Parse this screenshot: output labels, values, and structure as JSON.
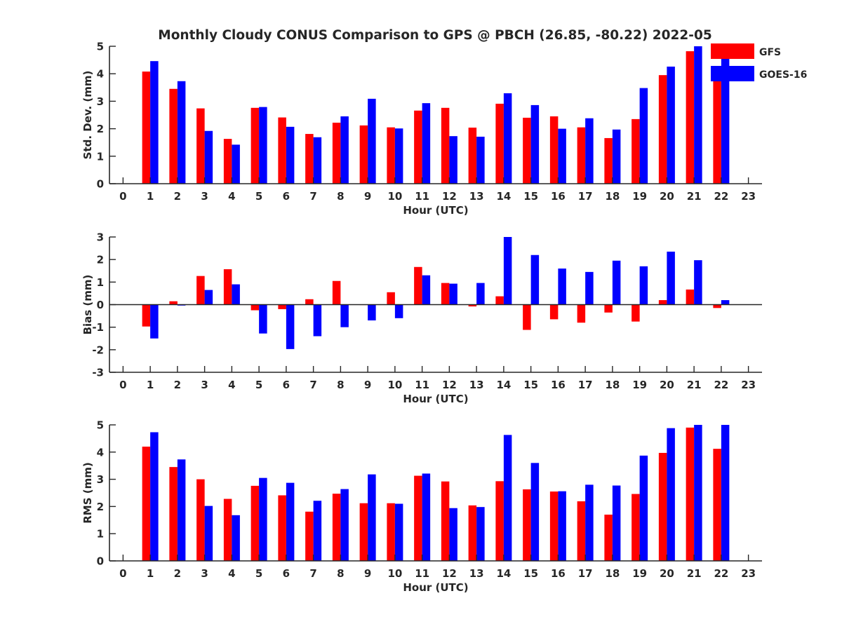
{
  "title": "Monthly Cloudy CONUS Comparison to GPS @ PBCH (26.85, -80.22) 2022-05",
  "colors": {
    "GFS": "#ff0000",
    "GOES-16": "#0000ff"
  },
  "legend": {
    "position": "top-right",
    "entries": [
      "GFS",
      "GOES-16"
    ]
  },
  "chart_data": [
    {
      "type": "bar",
      "xlabel": "Hour (UTC)",
      "ylabel": "Std. Dev. (mm)",
      "xlim": [
        -0.5,
        23.5
      ],
      "ylim": [
        0,
        5
      ],
      "yticks": [
        0,
        1,
        2,
        3,
        4,
        5
      ],
      "categories": [
        0,
        1,
        2,
        3,
        4,
        5,
        6,
        7,
        8,
        9,
        10,
        11,
        12,
        13,
        14,
        15,
        16,
        17,
        18,
        19,
        20,
        21,
        22,
        23
      ],
      "series": [
        {
          "name": "GFS",
          "values": [
            null,
            4.08,
            3.45,
            2.74,
            1.63,
            2.76,
            2.41,
            1.81,
            2.22,
            2.12,
            2.05,
            2.66,
            2.76,
            2.04,
            2.91,
            2.4,
            2.45,
            2.05,
            1.66,
            2.35,
            3.95,
            4.82,
            4.12,
            null
          ]
        },
        {
          "name": "GOES-16",
          "values": [
            null,
            4.46,
            3.73,
            1.92,
            1.42,
            2.79,
            2.07,
            1.69,
            2.45,
            3.09,
            2.01,
            2.93,
            1.73,
            1.71,
            3.29,
            2.86,
            2.0,
            2.38,
            1.97,
            3.48,
            4.26,
            5.0,
            5.0,
            null
          ]
        }
      ]
    },
    {
      "type": "bar",
      "xlabel": "Hour (UTC)",
      "ylabel": "Bias (mm)",
      "xlim": [
        -0.5,
        23.5
      ],
      "ylim": [
        -3,
        3
      ],
      "yticks": [
        -3,
        -2,
        -1,
        0,
        1,
        2,
        3
      ],
      "zero_line": true,
      "categories": [
        0,
        1,
        2,
        3,
        4,
        5,
        6,
        7,
        8,
        9,
        10,
        11,
        12,
        13,
        14,
        15,
        16,
        17,
        18,
        19,
        20,
        21,
        22,
        23
      ],
      "series": [
        {
          "name": "GFS",
          "values": [
            null,
            -0.97,
            0.15,
            1.27,
            1.57,
            -0.25,
            -0.2,
            0.24,
            1.05,
            0.0,
            0.55,
            1.67,
            0.96,
            -0.08,
            0.37,
            -1.12,
            -0.65,
            -0.8,
            -0.35,
            -0.75,
            0.2,
            0.67,
            -0.15,
            null
          ]
        },
        {
          "name": "GOES-16",
          "values": [
            null,
            -1.5,
            -0.04,
            0.65,
            0.9,
            -1.28,
            -1.97,
            -1.4,
            -1.0,
            -0.7,
            -0.6,
            1.3,
            0.93,
            0.96,
            3.0,
            2.2,
            1.6,
            1.45,
            1.95,
            1.7,
            2.35,
            1.97,
            0.2,
            null
          ]
        }
      ]
    },
    {
      "type": "bar",
      "xlabel": "Hour (UTC)",
      "ylabel": "RMS (mm)",
      "xlim": [
        -0.5,
        23.5
      ],
      "ylim": [
        0,
        5
      ],
      "yticks": [
        0,
        1,
        2,
        3,
        4,
        5
      ],
      "categories": [
        0,
        1,
        2,
        3,
        4,
        5,
        6,
        7,
        8,
        9,
        10,
        11,
        12,
        13,
        14,
        15,
        16,
        17,
        18,
        19,
        20,
        21,
        22,
        23
      ],
      "series": [
        {
          "name": "GFS",
          "values": [
            null,
            4.2,
            3.45,
            3.0,
            2.28,
            2.76,
            2.41,
            1.81,
            2.47,
            2.12,
            2.12,
            3.13,
            2.92,
            2.04,
            2.93,
            2.63,
            2.55,
            2.19,
            1.7,
            2.46,
            3.97,
            4.9,
            4.12,
            null
          ]
        },
        {
          "name": "GOES-16",
          "values": [
            null,
            4.73,
            3.73,
            2.02,
            1.68,
            3.05,
            2.87,
            2.21,
            2.64,
            3.18,
            2.1,
            3.21,
            1.94,
            1.98,
            4.63,
            3.6,
            2.56,
            2.8,
            2.77,
            3.87,
            4.88,
            5.0,
            5.0,
            null
          ]
        }
      ]
    }
  ]
}
